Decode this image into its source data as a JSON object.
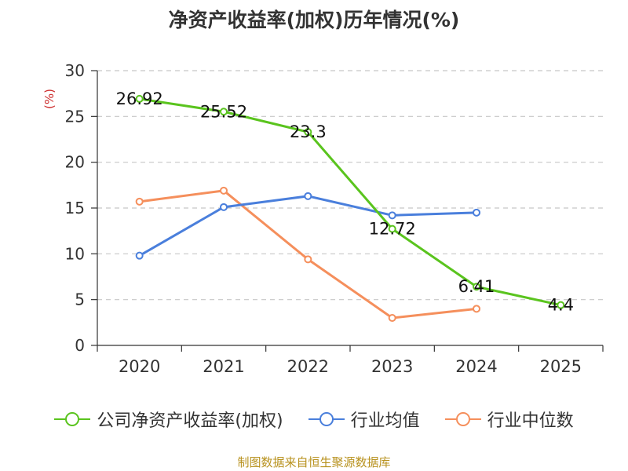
{
  "chart_data": {
    "type": "line",
    "title": "净资产收益率(加权)历年情况(%)",
    "ylabel": "(%)",
    "xlabel": "",
    "categories": [
      "2020",
      "2021",
      "2022",
      "2023",
      "2024",
      "2025"
    ],
    "ylim": [
      0,
      30
    ],
    "yticks": [
      0,
      5,
      10,
      15,
      20,
      25,
      30
    ],
    "grid": true,
    "legend_position": "bottom",
    "series": [
      {
        "name": "公司净资产收益率(加权)",
        "color": "#5ac41e",
        "values": [
          26.92,
          25.52,
          23.3,
          12.72,
          6.41,
          4.4
        ],
        "labels": [
          "26.92",
          "25.52",
          "23.3",
          "12.72",
          "6.41",
          "4.4"
        ]
      },
      {
        "name": "行业均值",
        "color": "#4a7fdc",
        "values": [
          9.8,
          15.1,
          16.3,
          14.2,
          14.5,
          null
        ]
      },
      {
        "name": "行业中位数",
        "color": "#f58f5c",
        "values": [
          15.7,
          16.9,
          9.4,
          3.0,
          4.0,
          null
        ]
      }
    ]
  },
  "source": "制图数据来自恒生聚源数据库"
}
